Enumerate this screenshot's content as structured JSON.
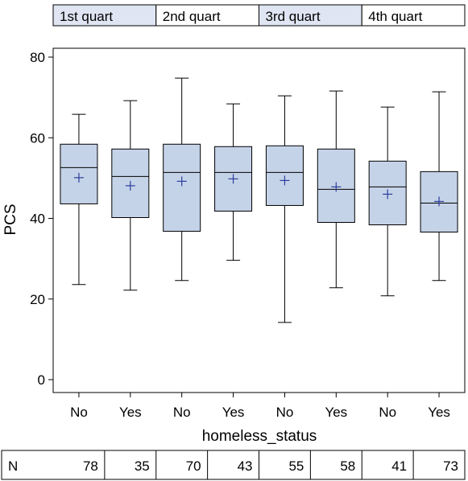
{
  "chart_data": {
    "type": "box",
    "xlabel": "homeless_status",
    "ylabel": "PCS",
    "ylim": [
      0,
      80
    ],
    "yticks": [
      0,
      20,
      40,
      60,
      80
    ],
    "grid": false,
    "colors": {
      "box_fill": "#c5d3e8",
      "mean_marker": "#2c3e9e",
      "header_fill_shaded": "#dfe5f2",
      "header_fill_plain": "#ffffff",
      "line": "#000000"
    },
    "groups": [
      {
        "label": "1st quart",
        "shaded": true
      },
      {
        "label": "2nd quart",
        "shaded": false
      },
      {
        "label": "3rd quart",
        "shaded": true
      },
      {
        "label": "4th quart",
        "shaded": false
      }
    ],
    "categories": [
      "No",
      "Yes",
      "No",
      "Yes",
      "No",
      "Yes",
      "No",
      "Yes"
    ],
    "boxes": [
      {
        "min": 23.6,
        "q1": 43.6,
        "median": 52.6,
        "q3": 58.4,
        "max": 65.8,
        "mean": 50.1
      },
      {
        "min": 22.2,
        "q1": 40.2,
        "median": 50.4,
        "q3": 57.2,
        "max": 69.2,
        "mean": 48.1
      },
      {
        "min": 24.6,
        "q1": 36.8,
        "median": 51.4,
        "q3": 58.4,
        "max": 74.8,
        "mean": 49.2
      },
      {
        "min": 29.6,
        "q1": 41.8,
        "median": 51.4,
        "q3": 57.8,
        "max": 68.4,
        "mean": 49.8
      },
      {
        "min": 14.2,
        "q1": 43.2,
        "median": 51.4,
        "q3": 58.0,
        "max": 70.4,
        "mean": 49.4
      },
      {
        "min": 22.8,
        "q1": 39.0,
        "median": 47.2,
        "q3": 57.2,
        "max": 71.6,
        "mean": 47.8
      },
      {
        "min": 20.8,
        "q1": 38.4,
        "median": 47.8,
        "q3": 54.2,
        "max": 67.6,
        "mean": 46.0
      },
      {
        "min": 24.6,
        "q1": 36.6,
        "median": 43.8,
        "q3": 51.6,
        "max": 71.4,
        "mean": 44.2
      }
    ],
    "n_label": "N",
    "n_values": [
      78,
      35,
      70,
      43,
      55,
      58,
      41,
      73
    ]
  }
}
